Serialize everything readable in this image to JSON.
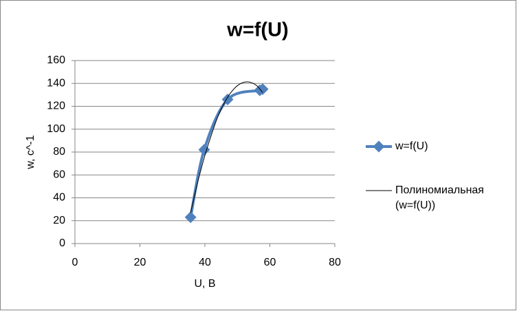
{
  "chart_data": {
    "type": "scatter",
    "title": "w=f(U)",
    "x_label": "U, В",
    "y_label": "w, с^-1",
    "series": [
      {
        "name": "w=f(U)",
        "color": "#4f81bd",
        "style": "smooth-line-markers",
        "x": [
          35.6,
          39.8,
          47.0,
          56.9,
          57.8
        ],
        "values": [
          23,
          82,
          126,
          134,
          135
        ]
      },
      {
        "name": "Полиномиальная (w=f(U))",
        "color": "#000000",
        "style": "trendline",
        "x": [
          35.6,
          38,
          40,
          42,
          44,
          46,
          48,
          50,
          52,
          54,
          56,
          57.8
        ],
        "values": [
          27,
          56,
          77,
          95,
          111,
          123,
          132,
          138,
          141,
          141,
          138,
          132
        ]
      }
    ],
    "xlim": [
      0,
      80
    ],
    "xticks": [
      0,
      20,
      40,
      60,
      80
    ],
    "ylim": [
      0,
      160
    ],
    "yticks": [
      0,
      20,
      40,
      60,
      80,
      100,
      120,
      140,
      160
    ],
    "grid": true,
    "legend": "right"
  }
}
